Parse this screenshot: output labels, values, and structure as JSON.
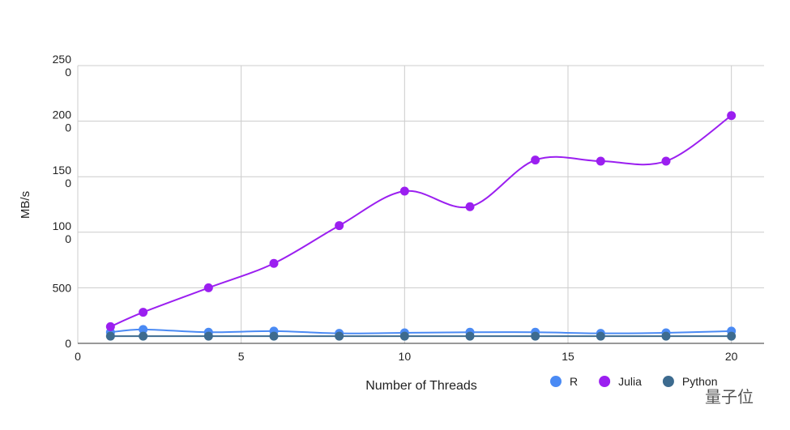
{
  "chart_data": {
    "type": "line",
    "x_label": "Number of Threads",
    "y_label": "MB/s",
    "x": [
      1,
      2,
      4,
      6,
      8,
      10,
      12,
      14,
      16,
      18,
      20
    ],
    "series": [
      {
        "name": "R",
        "color": "#4a8af4",
        "values": [
          100,
          125,
          100,
          110,
          90,
          95,
          100,
          100,
          90,
          95,
          110
        ]
      },
      {
        "name": "Julia",
        "color": "#9b1ff0",
        "values": [
          150,
          280,
          500,
          720,
          1060,
          1370,
          1230,
          1650,
          1640,
          1640,
          2050
        ]
      },
      {
        "name": "Python",
        "color": "#3d6b8f",
        "values": [
          65,
          65,
          65,
          65,
          65,
          65,
          65,
          65,
          65,
          65,
          65
        ]
      }
    ],
    "xlim": [
      0,
      21
    ],
    "xticks": [
      0,
      5,
      10,
      15,
      20
    ],
    "ylim": [
      0,
      2500
    ],
    "yticks": [
      0,
      500,
      1000,
      1500,
      2000,
      2500
    ],
    "grid": true,
    "legend": "bottom-right",
    "watermark": "量子位"
  }
}
